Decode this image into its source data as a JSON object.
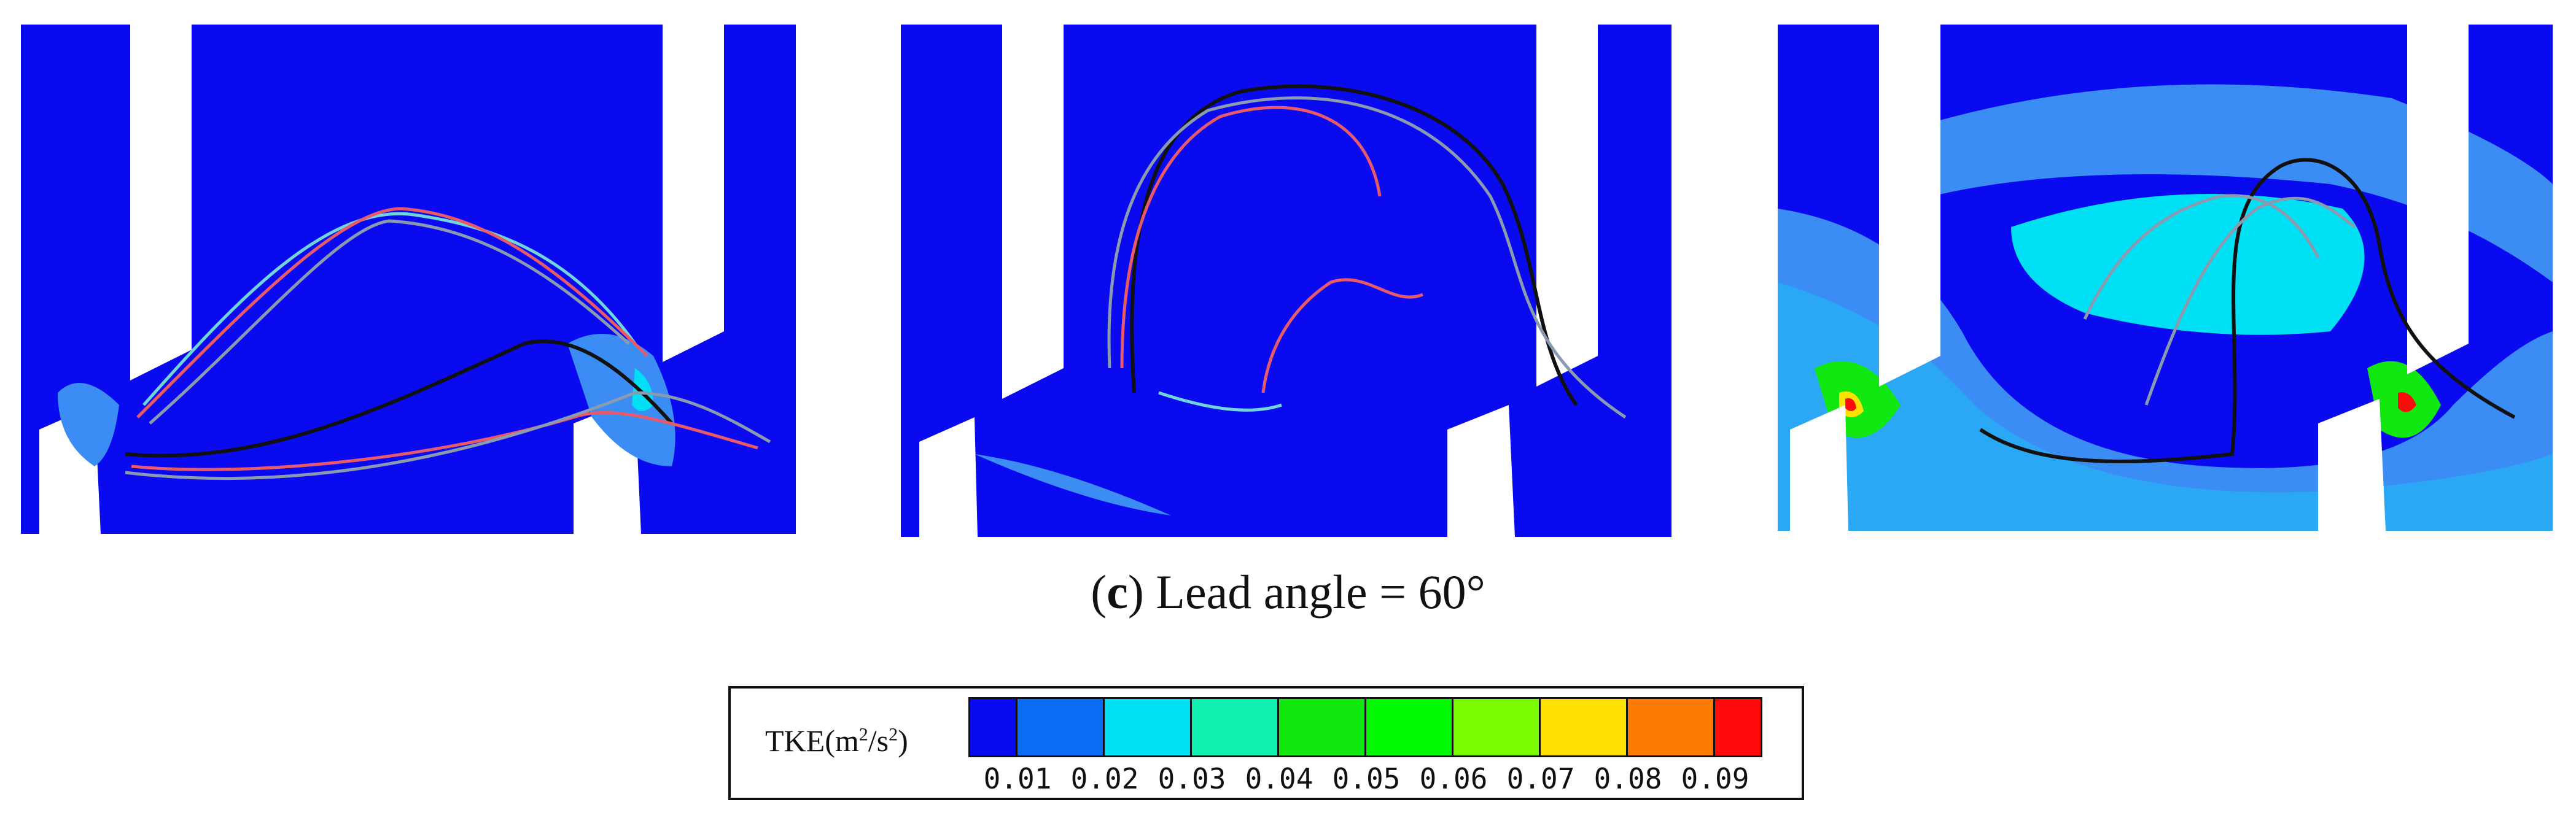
{
  "caption": {
    "prefix": "(",
    "letter": "c",
    "suffix": ") Lead angle = 60°"
  },
  "legend": {
    "title_prefix": "TKE(m",
    "title_sup1": "2",
    "title_mid": "/s",
    "title_sup2": "2",
    "title_suffix": ")",
    "colors": [
      "#0a0af0",
      "#0a6cf5",
      "#00e0f5",
      "#10f0b0",
      "#10e810",
      "#00f800",
      "#7cfc00",
      "#ffe000",
      "#ff7a00",
      "#ff0a0a"
    ],
    "tick_labels": [
      "0.01",
      "0.02",
      "0.03",
      "0.04",
      "0.05",
      "0.06",
      "0.07",
      "0.08",
      "0.09"
    ]
  },
  "colors": {
    "domain_blue": "#0a0af0",
    "contour_light": "#3c8cf5",
    "contour_mid": "#2aa8f5",
    "contour_cyan": "#00e0f5",
    "trajectory_black": "#111111",
    "trajectory_red": "#e85a6a",
    "trajectory_cyan": "#6fd6e0",
    "trajectory_gray": "#8a9ab0"
  }
}
